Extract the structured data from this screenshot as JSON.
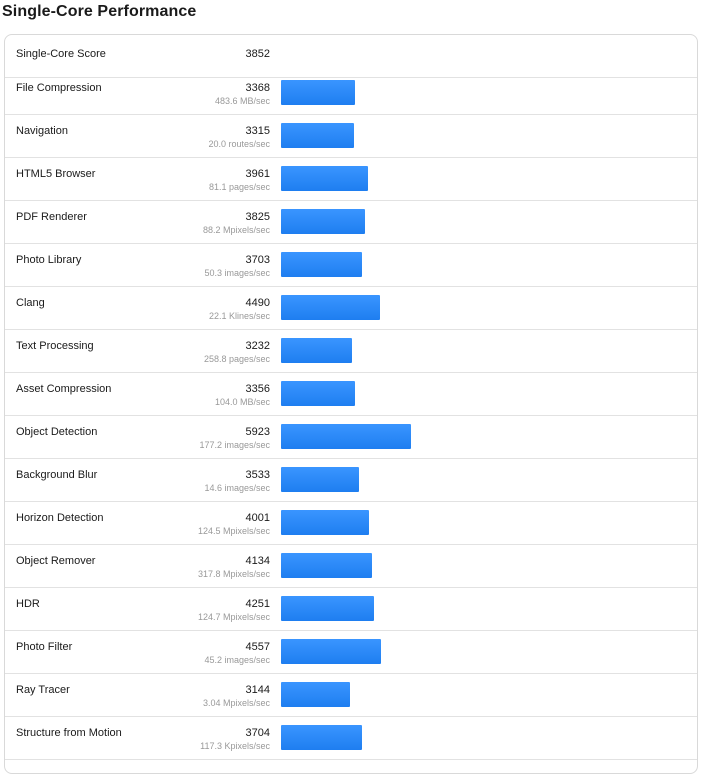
{
  "title": "Single-Core Performance",
  "colors": {
    "bar": "#2288f7",
    "divider": "#e2e2e2"
  },
  "summary": {
    "name": "Single-Core Score",
    "score": "3852"
  },
  "chart_data": {
    "type": "bar",
    "orientation": "horizontal",
    "title": "Single-Core Performance",
    "xlim": [
      0,
      5923
    ],
    "categories": [
      "File Compression",
      "Navigation",
      "HTML5 Browser",
      "PDF Renderer",
      "Photo Library",
      "Clang",
      "Text Processing",
      "Asset Compression",
      "Object Detection",
      "Background Blur",
      "Horizon Detection",
      "Object Remover",
      "HDR",
      "Photo Filter",
      "Ray Tracer",
      "Structure from Motion"
    ],
    "values": [
      3368,
      3315,
      3961,
      3825,
      3703,
      4490,
      3232,
      3356,
      5923,
      3533,
      4001,
      4134,
      4251,
      4557,
      3144,
      3704
    ],
    "rows": [
      {
        "name": "File Compression",
        "score": "3368",
        "sub": "483.6 MB/sec"
      },
      {
        "name": "Navigation",
        "score": "3315",
        "sub": "20.0 routes/sec"
      },
      {
        "name": "HTML5 Browser",
        "score": "3961",
        "sub": "81.1 pages/sec"
      },
      {
        "name": "PDF Renderer",
        "score": "3825",
        "sub": "88.2 Mpixels/sec"
      },
      {
        "name": "Photo Library",
        "score": "3703",
        "sub": "50.3 images/sec"
      },
      {
        "name": "Clang",
        "score": "4490",
        "sub": "22.1 Klines/sec"
      },
      {
        "name": "Text Processing",
        "score": "3232",
        "sub": "258.8 pages/sec"
      },
      {
        "name": "Asset Compression",
        "score": "3356",
        "sub": "104.0 MB/sec"
      },
      {
        "name": "Object Detection",
        "score": "5923",
        "sub": "177.2 images/sec"
      },
      {
        "name": "Background Blur",
        "score": "3533",
        "sub": "14.6 images/sec"
      },
      {
        "name": "Horizon Detection",
        "score": "4001",
        "sub": "124.5 Mpixels/sec"
      },
      {
        "name": "Object Remover",
        "score": "4134",
        "sub": "317.8 Mpixels/sec"
      },
      {
        "name": "HDR",
        "score": "4251",
        "sub": "124.7 Mpixels/sec"
      },
      {
        "name": "Photo Filter",
        "score": "4557",
        "sub": "45.2 images/sec"
      },
      {
        "name": "Ray Tracer",
        "score": "3144",
        "sub": "3.04 Mpixels/sec"
      },
      {
        "name": "Structure from Motion",
        "score": "3704",
        "sub": "117.3 Kpixels/sec"
      }
    ]
  }
}
